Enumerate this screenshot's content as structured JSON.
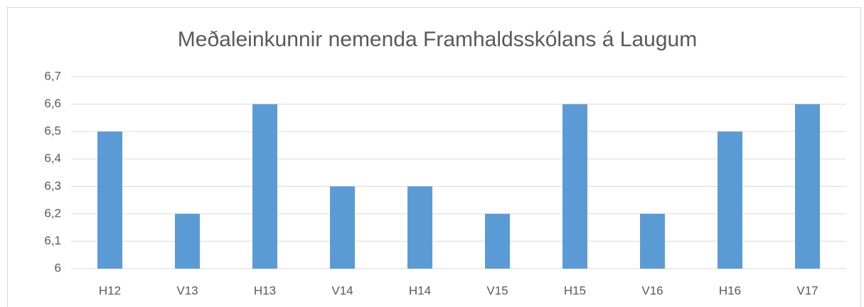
{
  "chart_data": {
    "type": "bar",
    "title": "Meðaleinkunnir nemenda Framhaldsskólans á Laugum",
    "categories": [
      "H12",
      "V13",
      "H13",
      "V14",
      "H14",
      "V15",
      "H15",
      "V16",
      "H16",
      "V17"
    ],
    "values": [
      6.5,
      6.2,
      6.6,
      6.3,
      6.3,
      6.2,
      6.6,
      6.2,
      6.5,
      6.6
    ],
    "color": "#5b9bd5",
    "ylim": [
      6,
      6.7
    ],
    "yticks": [
      6,
      {
        "value": 6.1,
        "label": "6,1"
      },
      {
        "value": 6.2,
        "label": "6,2"
      },
      {
        "value": 6.3,
        "label": "6,3"
      },
      {
        "value": 6.4,
        "label": "6,4"
      },
      {
        "value": 6.5,
        "label": "6,5"
      },
      {
        "value": 6.6,
        "label": "6,6"
      },
      {
        "value": 6.7,
        "label": "6,7"
      }
    ],
    "grid": true
  }
}
